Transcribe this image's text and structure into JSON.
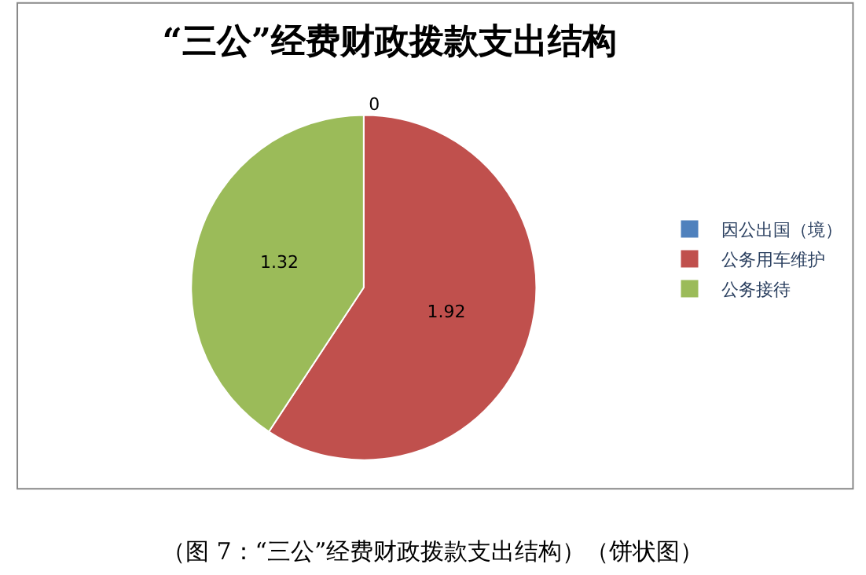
{
  "chart_data": {
    "type": "pie",
    "title": "“三公”经费财政拨款支出结构",
    "categories": [
      "因公出国（境）",
      "公务用车维护",
      "公务接待"
    ],
    "values": [
      0,
      1.92,
      1.32
    ],
    "colors": [
      "#4f81bd",
      "#c0504d",
      "#9bbb59"
    ],
    "value_labels": [
      "0",
      "1.92",
      "1.32"
    ],
    "legend": "right",
    "annotations": [
      "（图 7：“三公”经费财政拨款支出结构）（饼状图）"
    ]
  }
}
